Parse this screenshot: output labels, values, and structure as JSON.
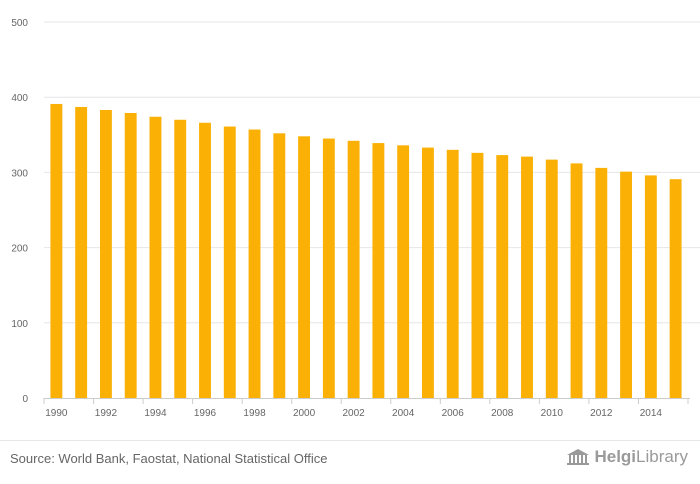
{
  "chart_data": {
    "type": "bar",
    "categories": [
      "1990",
      "1991",
      "1992",
      "1993",
      "1994",
      "1995",
      "1996",
      "1997",
      "1998",
      "1999",
      "2000",
      "2001",
      "2002",
      "2003",
      "2004",
      "2005",
      "2006",
      "2007",
      "2008",
      "2009",
      "2010",
      "2011",
      "2012",
      "2013",
      "2014",
      "2015"
    ],
    "values": [
      391,
      387,
      383,
      379,
      374,
      370,
      366,
      361,
      357,
      352,
      348,
      345,
      342,
      339,
      336,
      333,
      330,
      326,
      323,
      321,
      317,
      312,
      306,
      301,
      296,
      291
    ],
    "x_tick_labels": [
      "1990",
      "1992",
      "1994",
      "1996",
      "1998",
      "2000",
      "2002",
      "2004",
      "2006",
      "2008",
      "2010",
      "2012",
      "2014"
    ],
    "y_ticks": [
      0,
      100,
      200,
      300,
      400,
      500
    ],
    "ylim": [
      0,
      500
    ],
    "title": "",
    "xlabel": "",
    "ylabel": "",
    "grid": true,
    "bar_color": "#FAB005"
  },
  "footer": {
    "source": "Source: World Bank, Faostat, National Statistical Office",
    "logo_text_bold": "Helgi",
    "logo_text": "Library"
  },
  "colors": {
    "grid": "#e6e6e6",
    "axis_text": "#666666",
    "logo": "#9a9a9a"
  }
}
